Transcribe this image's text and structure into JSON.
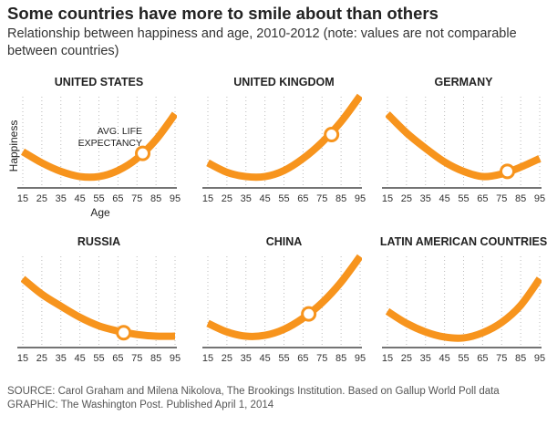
{
  "title": "Some countries have more to smile about than others",
  "subtitle": "Relationship between happiness and age, 2010-2012 (note: values are not comparable between countries)",
  "footer": {
    "source": "SOURCE: Carol Graham and Milena Nikolova, The Brookings Institution. Based on Gallup World Poll data",
    "graphic": "GRAPHIC: The Washington Post. Published April 1, 2014"
  },
  "chart_data": {
    "type": "line",
    "xlabel": "Age",
    "ylabel": "Happiness",
    "x_ticks": [
      15,
      25,
      35,
      45,
      55,
      65,
      75,
      85,
      95
    ],
    "xlim": [
      15,
      95
    ],
    "y_units": "relative (unlabeled)",
    "grid": "vertical dotted",
    "annotation": "AVG. LIFE EXPECTANCY",
    "line_color": "#f7941d",
    "panels": [
      {
        "name": "UNITED STATES",
        "x": [
          15,
          25,
          35,
          45,
          55,
          65,
          75,
          85,
          95
        ],
        "y": [
          0.38,
          0.25,
          0.15,
          0.09,
          0.09,
          0.16,
          0.3,
          0.52,
          0.82
        ],
        "life_expectancy": {
          "age": 78,
          "y": 0.36
        }
      },
      {
        "name": "UNITED KINGDOM",
        "x": [
          15,
          25,
          35,
          45,
          55,
          65,
          75,
          85,
          95
        ],
        "y": [
          0.25,
          0.14,
          0.09,
          0.09,
          0.16,
          0.3,
          0.49,
          0.73,
          1.03
        ],
        "life_expectancy": {
          "age": 80,
          "y": 0.58
        }
      },
      {
        "name": "GERMANY",
        "x": [
          15,
          25,
          35,
          45,
          55,
          65,
          75,
          85,
          95
        ],
        "y": [
          0.82,
          0.6,
          0.42,
          0.26,
          0.15,
          0.09,
          0.12,
          0.2,
          0.3
        ],
        "life_expectancy": {
          "age": 78,
          "y": 0.15
        }
      },
      {
        "name": "RUSSIA",
        "x": [
          15,
          25,
          35,
          45,
          55,
          65,
          75,
          85,
          95
        ],
        "y": [
          0.76,
          0.58,
          0.44,
          0.31,
          0.21,
          0.15,
          0.11,
          0.09,
          0.09
        ],
        "life_expectancy": {
          "age": 68,
          "y": 0.13
        }
      },
      {
        "name": "CHINA",
        "x": [
          15,
          25,
          35,
          45,
          55,
          65,
          75,
          85,
          95
        ],
        "y": [
          0.24,
          0.14,
          0.09,
          0.1,
          0.17,
          0.3,
          0.48,
          0.72,
          1.02
        ],
        "life_expectancy": {
          "age": 68,
          "y": 0.35
        }
      },
      {
        "name": "LATIN AMERICAN COUNTRIES",
        "x": [
          15,
          25,
          35,
          45,
          55,
          65,
          75,
          85,
          95
        ],
        "y": [
          0.38,
          0.24,
          0.14,
          0.08,
          0.07,
          0.13,
          0.25,
          0.45,
          0.76
        ]
      }
    ]
  }
}
